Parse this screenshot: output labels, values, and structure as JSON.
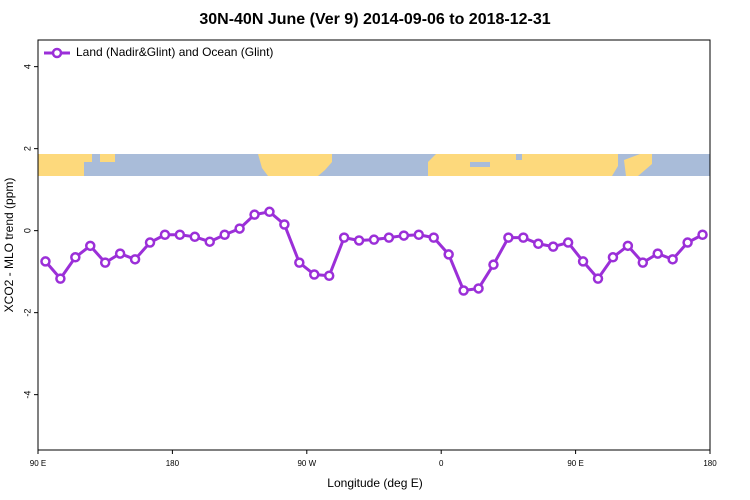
{
  "chart_data": {
    "type": "line",
    "title": "30N-40N June (Ver 9)   2014-09-06 to 2018-12-31",
    "xlabel": "Longitude (deg E)",
    "ylabel": "XCO2 - MLO trend (ppm)",
    "x": [
      95,
      105,
      115,
      125,
      135,
      145,
      155,
      165,
      175,
      185,
      195,
      205,
      215,
      225,
      235,
      245,
      255,
      265,
      275,
      285,
      295,
      305,
      315,
      325,
      335,
      345,
      355,
      365,
      375,
      385,
      395,
      405,
      415,
      425,
      435,
      445,
      455,
      465,
      475,
      485,
      495,
      505,
      515,
      525,
      535
    ],
    "series": [
      {
        "name": "Land (Nadir&Glint) and Ocean (Glint)",
        "color": "#9b2fd8",
        "values": [
          -0.75,
          -1.17,
          -0.65,
          -0.37,
          -0.78,
          -0.56,
          -0.7,
          -0.29,
          -0.1,
          -0.1,
          -0.15,
          -0.27,
          -0.1,
          0.05,
          0.39,
          0.46,
          0.15,
          -0.78,
          -1.07,
          -1.1,
          -0.17,
          -0.24,
          -0.22,
          -0.17,
          -0.12,
          -0.1,
          -0.17,
          -0.58,
          -1.46,
          -1.41,
          -0.83,
          -0.17,
          -0.17,
          -0.32,
          -0.39,
          -0.29,
          -0.75,
          -1.17,
          -0.65,
          -0.37,
          -0.78,
          -0.56,
          -0.7,
          -0.29,
          -0.1
        ]
      }
    ],
    "xlim": [
      90,
      540
    ],
    "xticks": [
      {
        "value": 90,
        "label": "90 E"
      },
      {
        "value": 180,
        "label": "180"
      },
      {
        "value": 270,
        "label": "90 W"
      },
      {
        "value": 360,
        "label": "0"
      },
      {
        "value": 450,
        "label": "90 E"
      },
      {
        "value": 540,
        "label": "180"
      }
    ],
    "ylim": [
      -5.35,
      4.65
    ],
    "yticks": [
      -4,
      -2,
      0,
      2,
      4
    ],
    "legend": "top-left"
  }
}
